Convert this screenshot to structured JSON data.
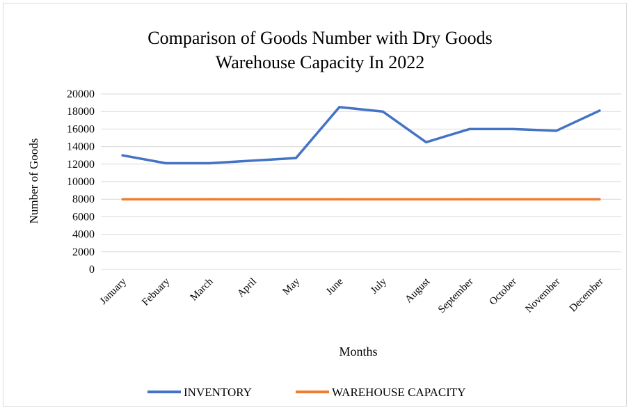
{
  "chart_data": {
    "type": "line",
    "title_lines": [
      "Comparison of Goods Number with Dry Goods",
      "Warehouse Capacity In 2022"
    ],
    "xlabel": "Months",
    "ylabel": "Number of Goods",
    "categories": [
      "January",
      "Febuary",
      "March",
      "April",
      "May",
      "June",
      "July",
      "August",
      "September",
      "October",
      "November",
      "December"
    ],
    "series": [
      {
        "name": "INVENTORY",
        "color": "#4472c4",
        "values": [
          13000,
          12100,
          12100,
          12400,
          12700,
          18500,
          18000,
          14500,
          16000,
          16000,
          15800,
          18100
        ]
      },
      {
        "name": "WAREHOUSE CAPACITY",
        "color": "#ed7d31",
        "values": [
          8000,
          8000,
          8000,
          8000,
          8000,
          8000,
          8000,
          8000,
          8000,
          8000,
          8000,
          8000
        ]
      }
    ],
    "yticks": [
      0,
      2000,
      4000,
      6000,
      8000,
      10000,
      12000,
      14000,
      16000,
      18000,
      20000
    ],
    "ylim": [
      0,
      20000
    ],
    "grid": true,
    "legend": "bottom"
  }
}
